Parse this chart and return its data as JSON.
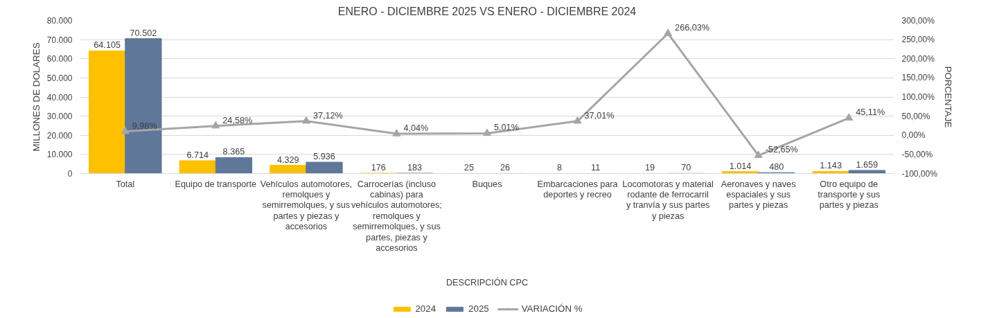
{
  "chart_data": {
    "type": "bar",
    "title": "ENERO - DICIEMBRE 2025 VS ENERO - DICIEMBRE 2024",
    "xlabel": "DESCRIPCIÓN CPC",
    "ylabel": "MILLONES DE DOLARES",
    "y2label": "PORCENTAJE",
    "categories": [
      "Total",
      "Equipo de transporte",
      "Vehículos automotores, remolques y semirremolques, y sus partes y piezas y accesorios",
      "Carrocerías (incluso cabinas) para vehículos automotores; remolques y semirremolques, y sus partes, piezas y accesorios",
      "Buques",
      "Embarcaciones para deportes y recreo",
      "Locomotoras y material rodante de ferrocarril y tranvía y sus partes y piezas",
      "Aeronaves y naves espaciales y sus partes y piezas",
      "Otro equipo de transporte y sus partes y piezas"
    ],
    "series": [
      {
        "name": "2024",
        "color": "#ffc000",
        "values": [
          64105,
          6714,
          4329,
          176,
          25,
          8,
          19,
          1014,
          1143
        ],
        "value_labels": [
          "64.105",
          "6.714",
          "4.329",
          "176",
          "25",
          "8",
          "19",
          "1.014",
          "1.143"
        ]
      },
      {
        "name": "2025",
        "color": "#5f7799",
        "values": [
          70502,
          8365,
          5936,
          183,
          26,
          11,
          70,
          480,
          1659
        ],
        "value_labels": [
          "70.502",
          "8.365",
          "5.936",
          "183",
          "26",
          "11",
          "70",
          "480",
          "1.659"
        ]
      },
      {
        "name": "VARIACIÓN %",
        "type": "line",
        "axis": "y2",
        "color": "#a5a5a5",
        "marker": "triangle",
        "values": [
          9.98,
          24.58,
          37.12,
          4.04,
          5.01,
          37.01,
          266.03,
          -52.65,
          45.11
        ],
        "value_labels": [
          "9,98%",
          "24,58%",
          "37,12%",
          "4,04%",
          "5,01%",
          "37,01%",
          "266,03%",
          "-52,65%",
          "45,11%"
        ]
      }
    ],
    "ylim": [
      0,
      80000
    ],
    "yticks": [
      {
        "value": 0,
        "label": "0"
      },
      {
        "value": 10000,
        "label": "10.000"
      },
      {
        "value": 20000,
        "label": "20.000"
      },
      {
        "value": 30000,
        "label": "30.000"
      },
      {
        "value": 40000,
        "label": "40.000"
      },
      {
        "value": 50000,
        "label": "50.000"
      },
      {
        "value": 60000,
        "label": "60.000"
      },
      {
        "value": 70000,
        "label": "70.000"
      },
      {
        "value": 80000,
        "label": "80.000"
      }
    ],
    "y2lim": [
      -100,
      300
    ],
    "y2ticks": [
      {
        "value": -100,
        "label": "-100,00%"
      },
      {
        "value": -50,
        "label": "-50,00%"
      },
      {
        "value": 0,
        "label": "0,00%"
      },
      {
        "value": 50,
        "label": "50,00%"
      },
      {
        "value": 100,
        "label": "100,00%"
      },
      {
        "value": 150,
        "label": "150,00%"
      },
      {
        "value": 200,
        "label": "200,00%"
      },
      {
        "value": 250,
        "label": "250,00%"
      },
      {
        "value": 300,
        "label": "300,00%"
      }
    ],
    "grid": "y",
    "legend": "bottom"
  }
}
